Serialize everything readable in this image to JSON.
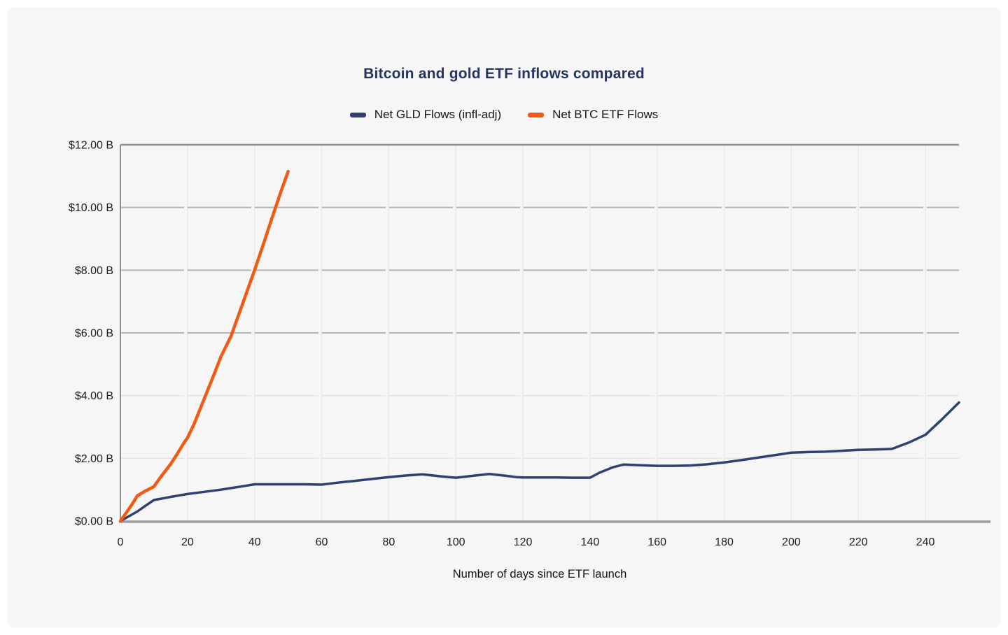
{
  "chart_data": {
    "type": "line",
    "title": "Bitcoin and gold ETF inflows compared",
    "xlabel": "Number of days since ETF launch",
    "ylabel": "",
    "xlim": [
      0,
      250
    ],
    "ylim": [
      0,
      12
    ],
    "x_ticks": [
      0,
      20,
      40,
      60,
      80,
      100,
      120,
      140,
      160,
      180,
      200,
      220,
      240
    ],
    "y_ticks": [
      0,
      2,
      4,
      6,
      8,
      10,
      12
    ],
    "y_tick_labels": [
      "$0.00 B",
      "$2.00 B",
      "$4.00 B",
      "$6.00 B",
      "$8.00 B",
      "$10.00 B",
      "$12.00 B"
    ],
    "grid": "horizontal gridlines (darker above $4B, lighter below) + faint vertical gridlines every 20 days",
    "legend_position": "top-center",
    "units": "billions USD",
    "series": [
      {
        "name": "Net GLD Flows (infl-adj)",
        "color": "#2e4172",
        "points": [
          [
            0,
            0
          ],
          [
            2,
            0.12
          ],
          [
            5,
            0.3
          ],
          [
            7,
            0.45
          ],
          [
            10,
            0.67
          ],
          [
            13,
            0.73
          ],
          [
            15,
            0.77
          ],
          [
            20,
            0.86
          ],
          [
            25,
            0.93
          ],
          [
            30,
            1.0
          ],
          [
            33,
            1.05
          ],
          [
            36,
            1.1
          ],
          [
            40,
            1.17
          ],
          [
            45,
            1.17
          ],
          [
            50,
            1.17
          ],
          [
            55,
            1.17
          ],
          [
            60,
            1.16
          ],
          [
            63,
            1.2
          ],
          [
            67,
            1.25
          ],
          [
            70,
            1.28
          ],
          [
            75,
            1.34
          ],
          [
            80,
            1.4
          ],
          [
            85,
            1.45
          ],
          [
            90,
            1.49
          ],
          [
            95,
            1.43
          ],
          [
            100,
            1.38
          ],
          [
            105,
            1.44
          ],
          [
            110,
            1.5
          ],
          [
            115,
            1.44
          ],
          [
            118,
            1.4
          ],
          [
            120,
            1.39
          ],
          [
            125,
            1.39
          ],
          [
            130,
            1.39
          ],
          [
            135,
            1.38
          ],
          [
            140,
            1.38
          ],
          [
            143,
            1.55
          ],
          [
            147,
            1.72
          ],
          [
            150,
            1.8
          ],
          [
            155,
            1.78
          ],
          [
            160,
            1.76
          ],
          [
            165,
            1.76
          ],
          [
            170,
            1.77
          ],
          [
            175,
            1.81
          ],
          [
            180,
            1.87
          ],
          [
            185,
            1.94
          ],
          [
            190,
            2.02
          ],
          [
            195,
            2.1
          ],
          [
            200,
            2.18
          ],
          [
            205,
            2.2
          ],
          [
            210,
            2.21
          ],
          [
            215,
            2.24
          ],
          [
            220,
            2.27
          ],
          [
            225,
            2.28
          ],
          [
            230,
            2.3
          ],
          [
            235,
            2.5
          ],
          [
            240,
            2.75
          ],
          [
            245,
            3.25
          ],
          [
            250,
            3.78
          ]
        ]
      },
      {
        "name": "Net BTC ETF Flows",
        "color": "#f15a10",
        "points": [
          [
            0,
            0
          ],
          [
            2,
            0.3
          ],
          [
            4,
            0.62
          ],
          [
            5,
            0.8
          ],
          [
            7,
            0.93
          ],
          [
            10,
            1.1
          ],
          [
            12,
            1.4
          ],
          [
            15,
            1.82
          ],
          [
            17,
            2.15
          ],
          [
            19,
            2.5
          ],
          [
            20,
            2.65
          ],
          [
            22,
            3.1
          ],
          [
            25,
            3.9
          ],
          [
            28,
            4.7
          ],
          [
            30,
            5.25
          ],
          [
            33,
            5.9
          ],
          [
            35,
            6.5
          ],
          [
            38,
            7.4
          ],
          [
            40,
            8.0
          ],
          [
            43,
            8.95
          ],
          [
            45,
            9.6
          ],
          [
            48,
            10.55
          ],
          [
            50,
            11.15
          ]
        ]
      }
    ],
    "colors": {
      "panel_background": "#f6f6f7",
      "page_background": "#ffffff",
      "title_text": "#253560",
      "tick_text": "#1b1b1b",
      "axis_line": "#8d8d8d",
      "bottom_axis_line": "#9c9c9c",
      "grid_major": "#b3b3b3",
      "grid_minor": "#e4e4e4",
      "grid_vertical": "#e9e9e9"
    }
  }
}
